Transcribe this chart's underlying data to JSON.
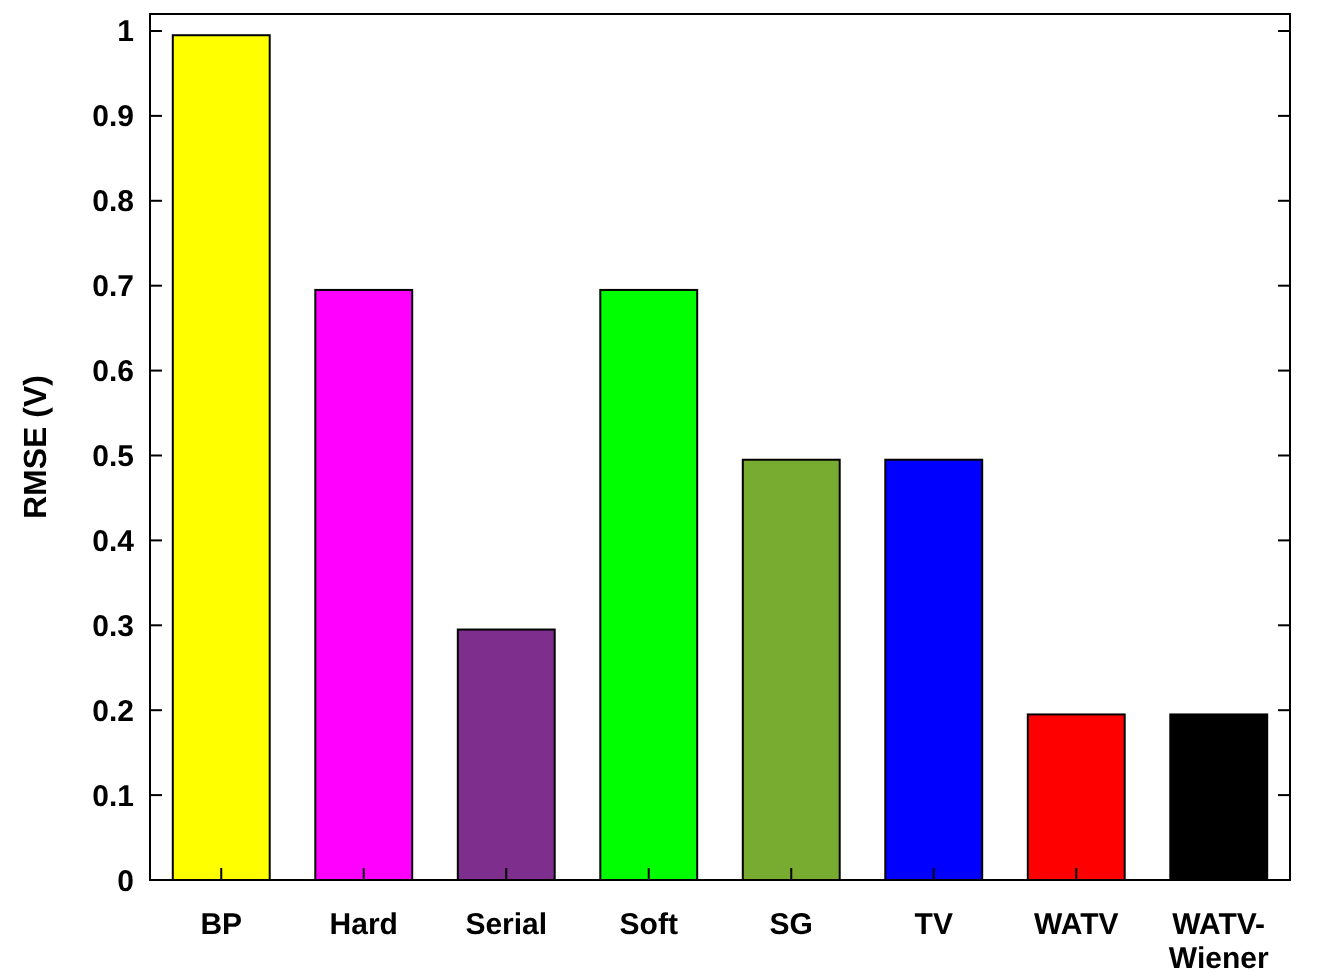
{
  "chart_data": {
    "type": "bar",
    "ylabel": "RMSE (V)",
    "categories": [
      "BP",
      "Hard",
      "Serial",
      "Soft",
      "SG",
      "TV",
      "WATV",
      "WATV-Wiener"
    ],
    "values": [
      0.995,
      0.695,
      0.295,
      0.695,
      0.495,
      0.495,
      0.195,
      0.195
    ],
    "colors": [
      "#ffff00",
      "#ff00ff",
      "#7e2f8e",
      "#00ff00",
      "#77ac30",
      "#0000ff",
      "#ff0000",
      "#000000"
    ],
    "ylim": [
      0,
      1.02
    ],
    "yticks": [
      0,
      0.1,
      0.2,
      0.3,
      0.4,
      0.5,
      0.6,
      0.7,
      0.8,
      0.9,
      1
    ],
    "grid": false
  }
}
